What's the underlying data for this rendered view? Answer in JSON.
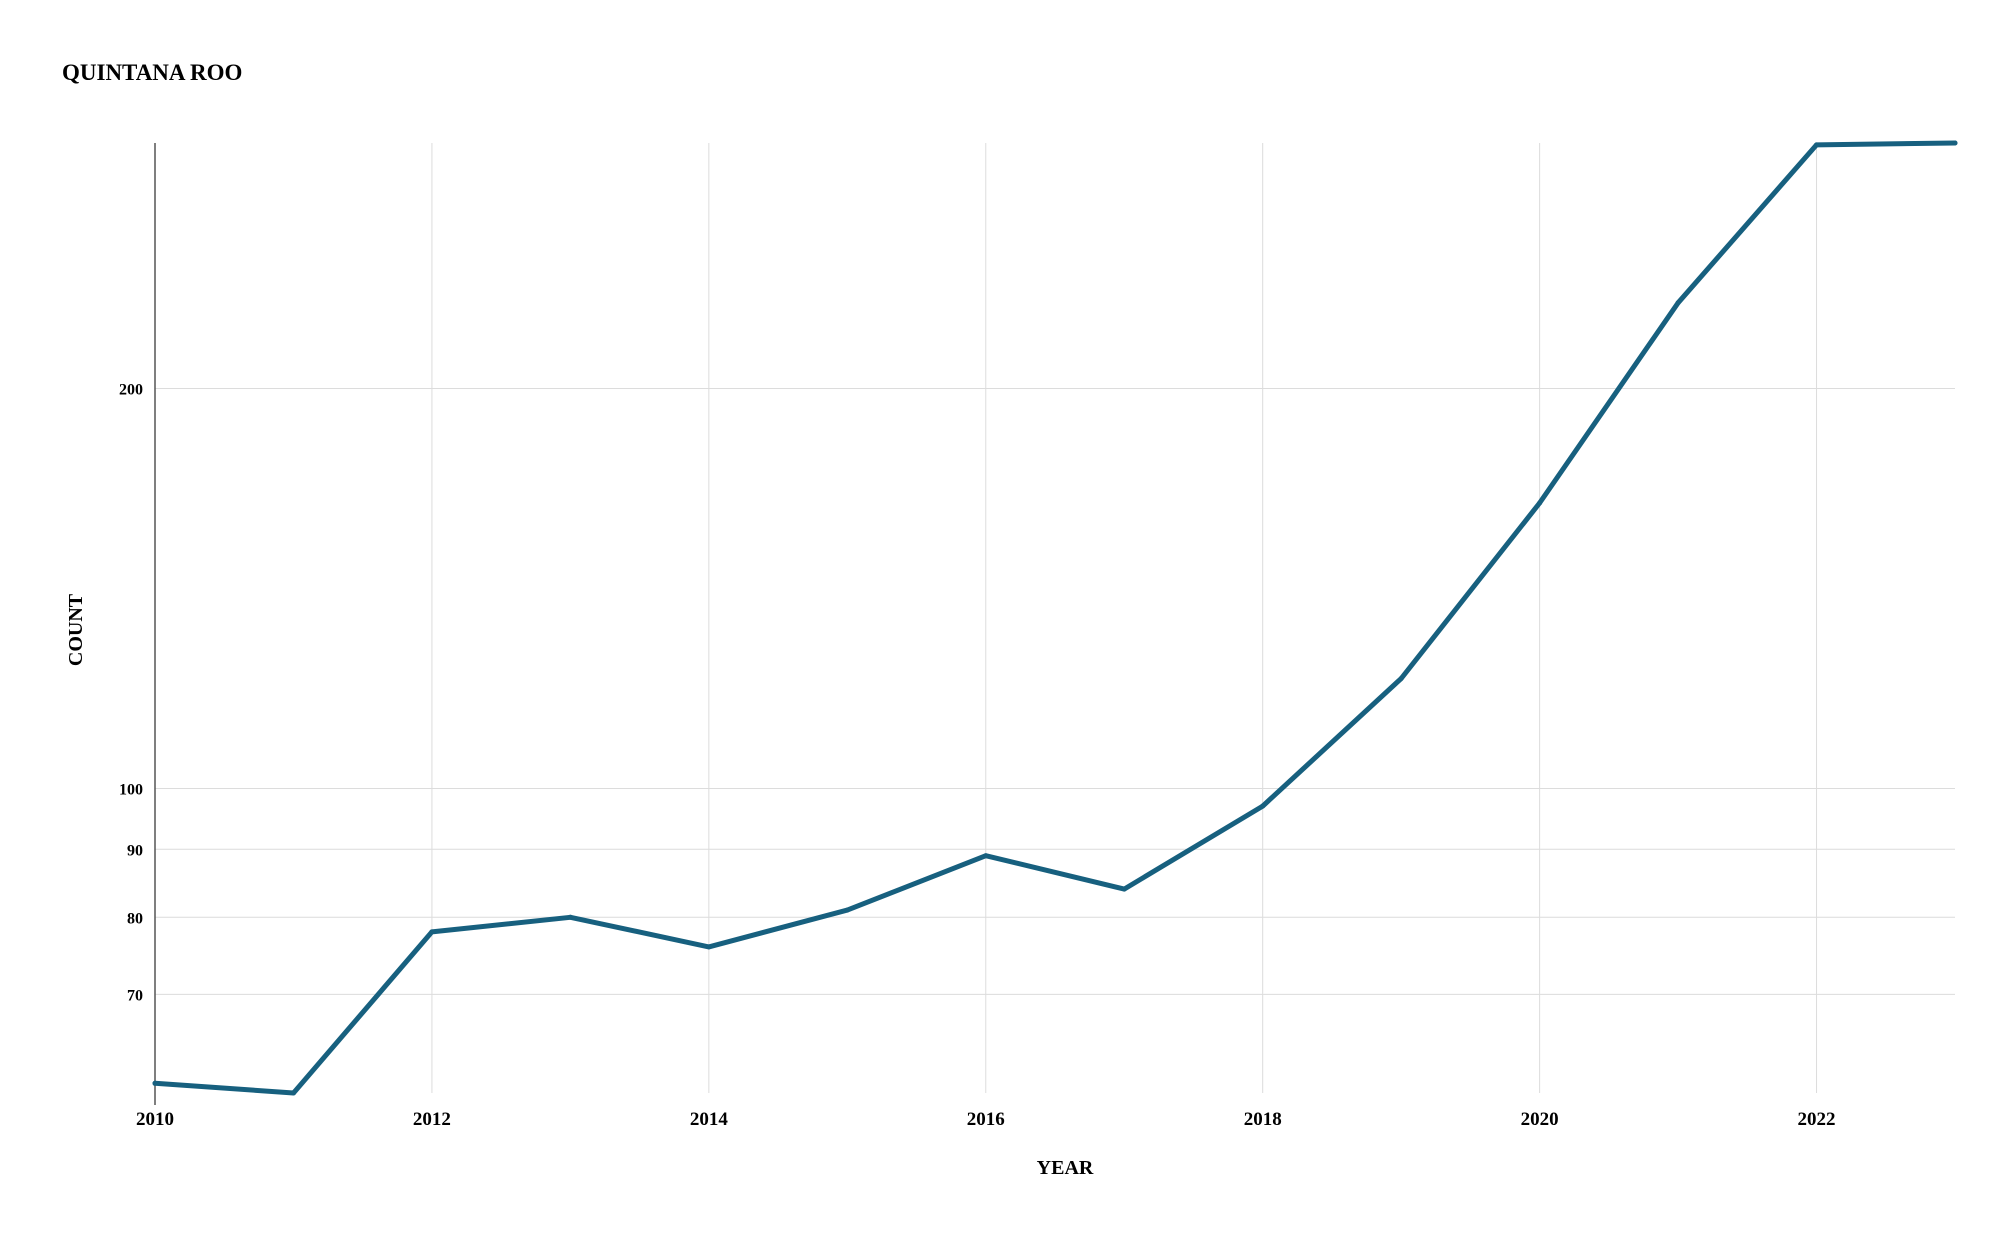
{
  "chart_data": {
    "type": "line",
    "title": "QUINTANA ROO",
    "xlabel": "YEAR",
    "ylabel": "COUNT",
    "y_scale": "log",
    "x": [
      2010,
      2011,
      2012,
      2013,
      2014,
      2015,
      2016,
      2017,
      2018,
      2019,
      2020,
      2021,
      2022,
      2023
    ],
    "series": [
      {
        "values": [
          60,
          59,
          78,
          80,
          76,
          81,
          89,
          84,
          97,
          121,
          164,
          232,
          305,
          306
        ]
      }
    ],
    "x_ticks": [
      2010,
      2012,
      2014,
      2016,
      2018,
      2020,
      2022
    ],
    "x_tick_labels": [
      "2010",
      "2012",
      "2014",
      "2016",
      "2018",
      "2020",
      "2022"
    ],
    "y_ticks": [
      70,
      80,
      90,
      100,
      200
    ],
    "y_tick_labels": [
      "70",
      "80",
      "90",
      "100",
      "200"
    ],
    "xlim": [
      2010,
      2023
    ],
    "ylim": [
      59,
      306
    ],
    "grid": true,
    "legend": "none",
    "line_color": "#17607f"
  }
}
